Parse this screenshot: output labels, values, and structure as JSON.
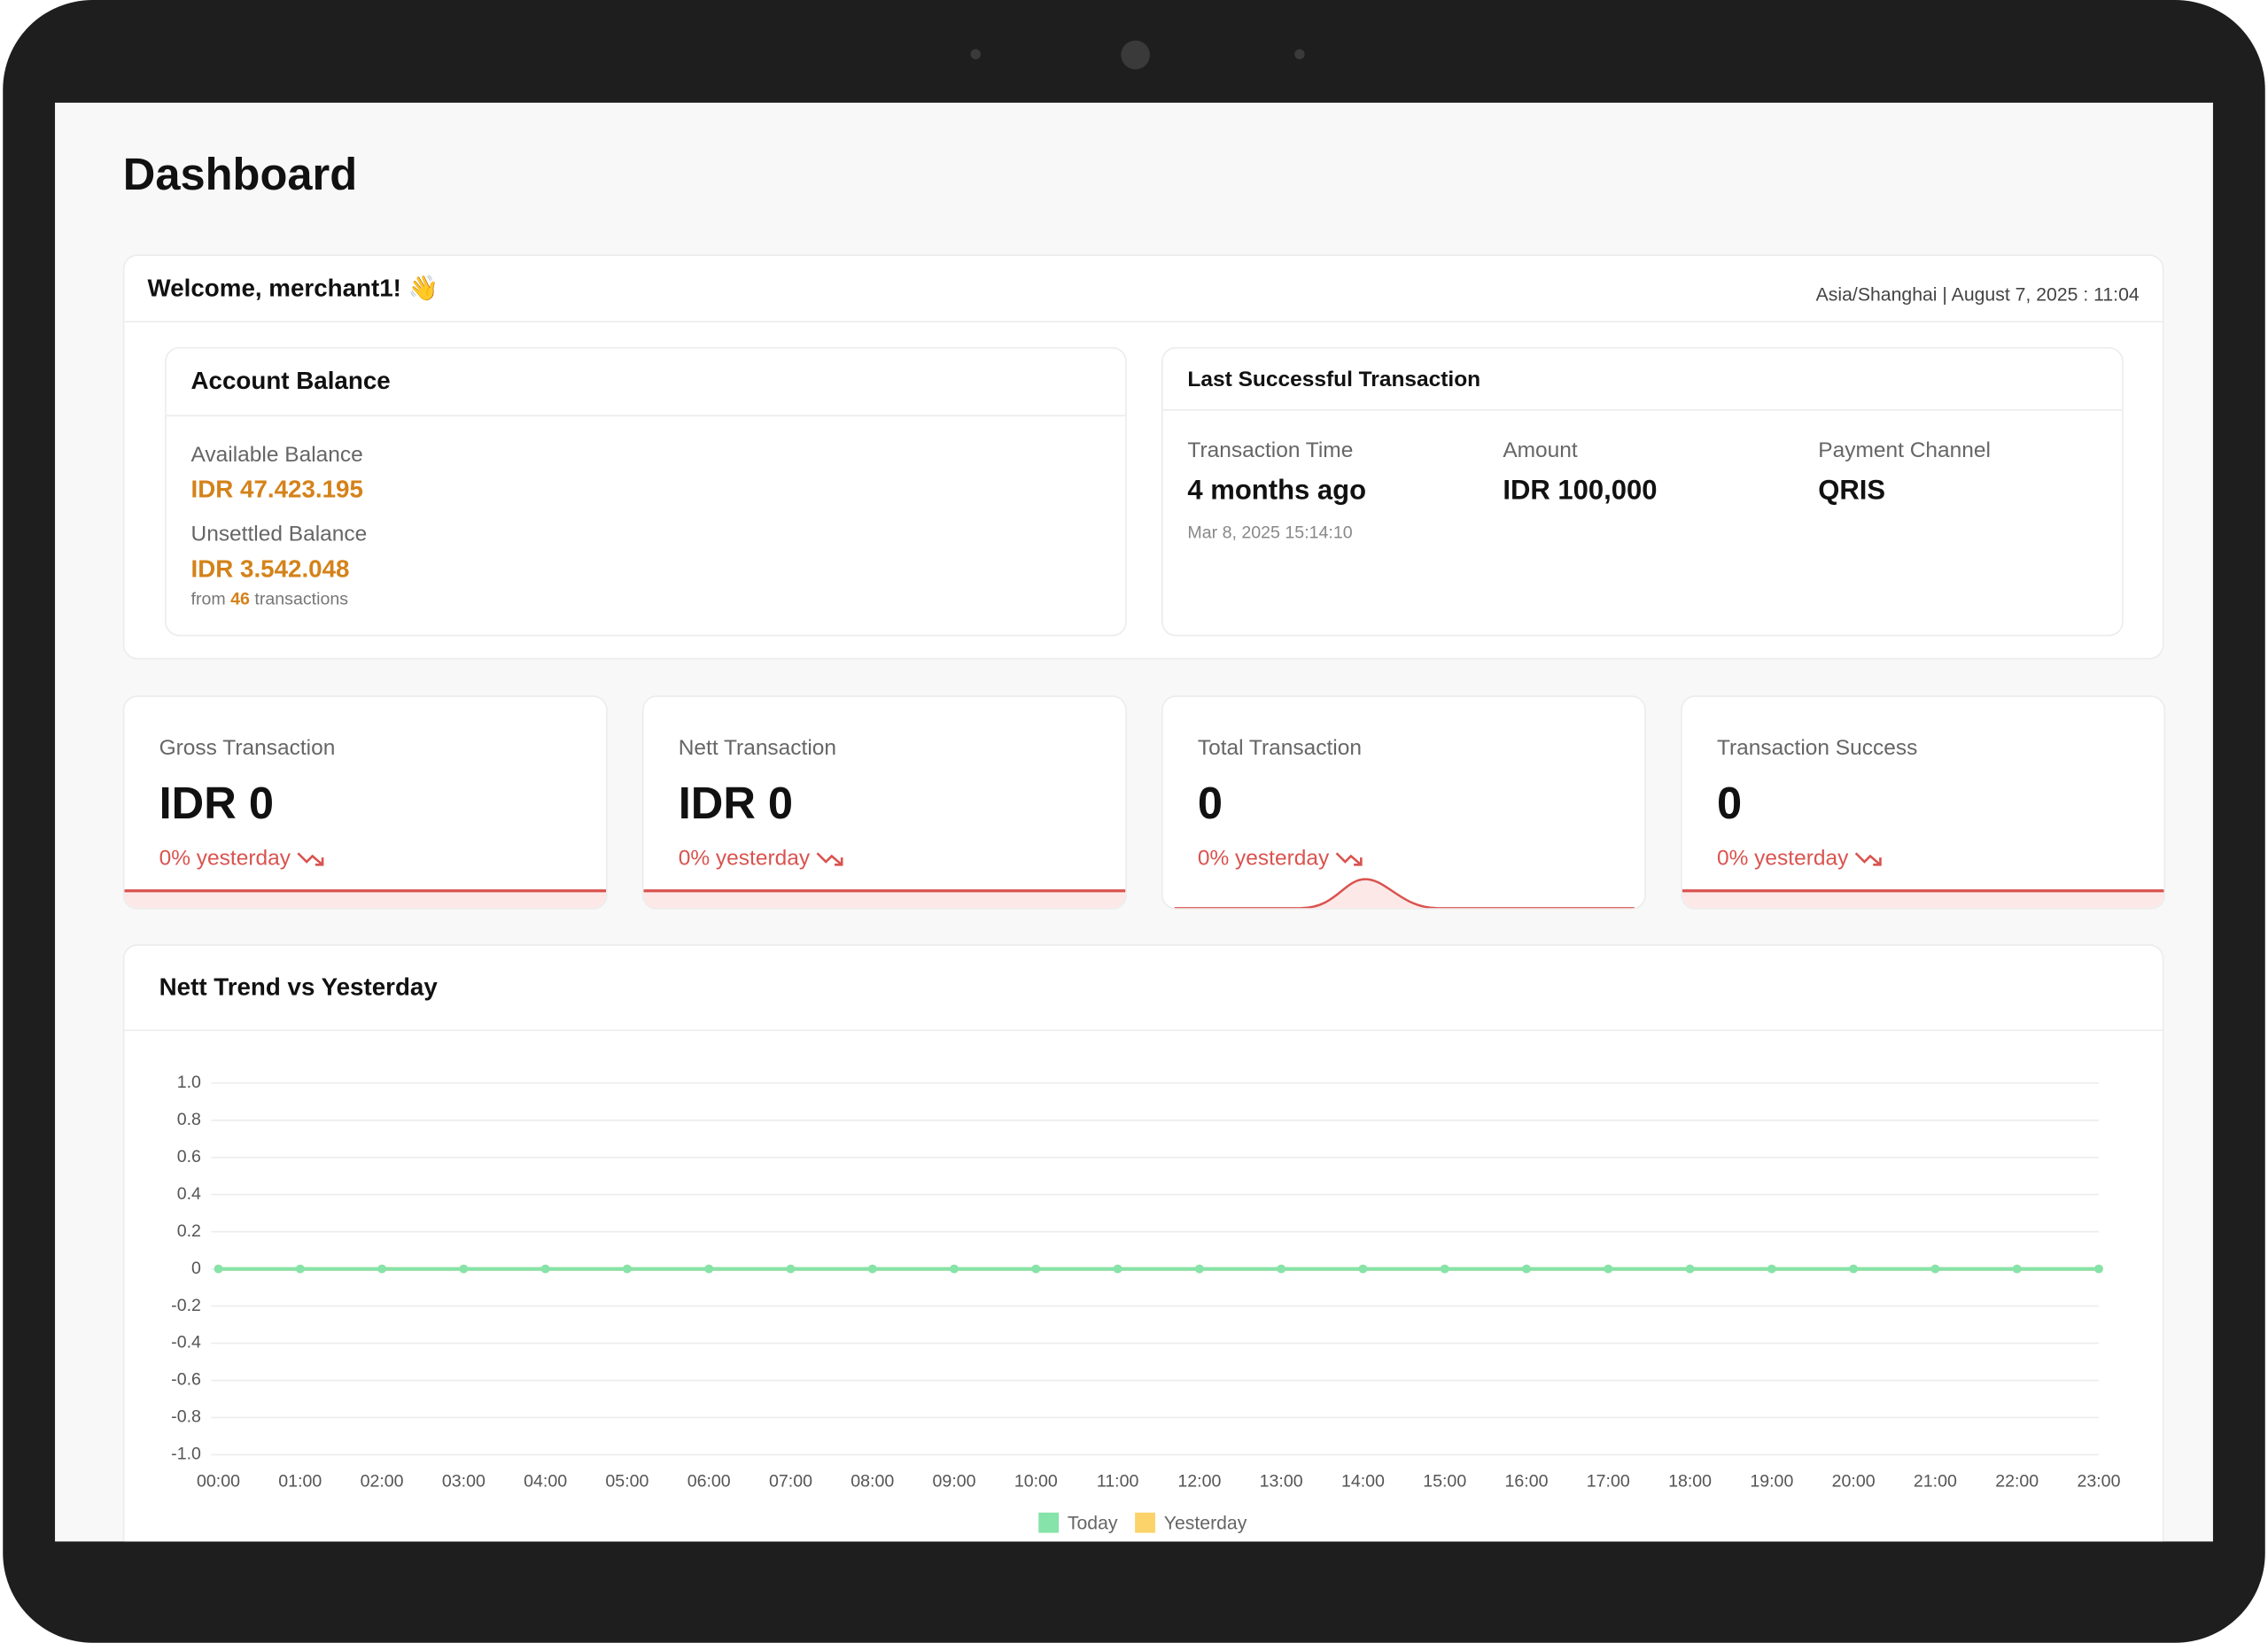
{
  "page_title": "Dashboard",
  "welcome": {
    "greeting": "Welcome, merchant1! 👋",
    "timezone_datetime": "Asia/Shanghai | August 7, 2025 : 11:04"
  },
  "account_balance": {
    "title": "Account Balance",
    "available_label": "Available Balance",
    "available_value": "IDR 47.423.195",
    "unsettled_label": "Unsettled Balance",
    "unsettled_value": "IDR 3.542.048",
    "from_prefix": "from",
    "transaction_count": "46",
    "from_suffix": "transactions"
  },
  "last_transaction": {
    "title": "Last Successful Transaction",
    "fields": [
      {
        "label": "Transaction Time",
        "value": "4 months ago",
        "detail": "Mar 8, 2025 15:14:10"
      },
      {
        "label": "Amount",
        "value": "IDR 100,000"
      },
      {
        "label": "Payment Channel",
        "value": "QRIS"
      }
    ]
  },
  "stats": [
    {
      "label": "Gross Transaction",
      "value": "IDR 0",
      "change": "0% yesterday"
    },
    {
      "label": "Nett Transaction",
      "value": "IDR 0",
      "change": "0% yesterday"
    },
    {
      "label": "Total Transaction",
      "value": "0",
      "change": "0% yesterday"
    },
    {
      "label": "Transaction Success",
      "value": "0",
      "change": "0% yesterday"
    }
  ],
  "chart_data": {
    "type": "line",
    "title": "Nett Trend vs Yesterday",
    "categories": [
      "00:00",
      "01:00",
      "02:00",
      "03:00",
      "04:00",
      "05:00",
      "06:00",
      "07:00",
      "08:00",
      "09:00",
      "10:00",
      "11:00",
      "12:00",
      "13:00",
      "14:00",
      "15:00",
      "16:00",
      "17:00",
      "18:00",
      "19:00",
      "20:00",
      "21:00",
      "22:00",
      "23:00"
    ],
    "series": [
      {
        "name": "Today",
        "color": "#86e3a9",
        "values": [
          0,
          0,
          0,
          0,
          0,
          0,
          0,
          0,
          0,
          0,
          0,
          0,
          0,
          0,
          0,
          0,
          0,
          0,
          0,
          0,
          0,
          0,
          0,
          0
        ]
      },
      {
        "name": "Yesterday",
        "color": "#fcd36b",
        "values": [
          0,
          0,
          0,
          0,
          0,
          0,
          0,
          0,
          0,
          0,
          0,
          0,
          0,
          0,
          0,
          0,
          0,
          0,
          0,
          0,
          0,
          0,
          0,
          0
        ]
      }
    ],
    "ylim": [
      -1,
      1
    ],
    "yticks": [
      {
        "value": -1,
        "label": "-1.0"
      },
      -0.8,
      -0.6,
      -0.4,
      -0.2,
      0,
      0.2,
      0.4,
      0.6,
      0.8,
      {
        "value": 1,
        "label": "1.0"
      }
    ],
    "grid": true,
    "legend": "bottom"
  }
}
